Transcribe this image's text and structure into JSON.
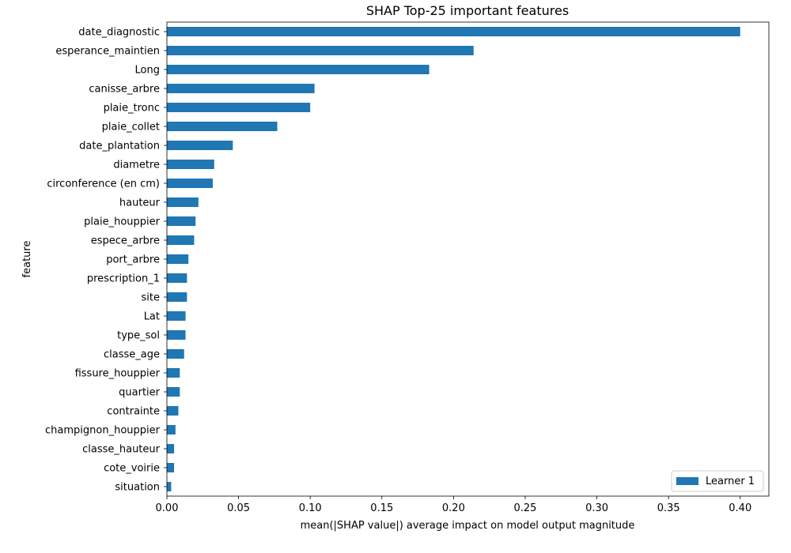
{
  "chart_data": {
    "type": "bar",
    "orientation": "horizontal",
    "title": "SHAP Top-25 important features",
    "xlabel": "mean(|SHAP value|) average impact on model output magnitude",
    "ylabel": "feature",
    "xlim": [
      0.0,
      0.42
    ],
    "xticks": [
      "0.00",
      "0.05",
      "0.10",
      "0.15",
      "0.20",
      "0.25",
      "0.30",
      "0.35",
      "0.40"
    ],
    "categories": [
      "date_diagnostic",
      "esperance_maintien",
      "Long",
      "canisse_arbre",
      "plaie_tronc",
      "plaie_collet",
      "date_plantation",
      "diametre",
      "circonference (en cm)",
      "hauteur",
      "plaie_houppier",
      "espece_arbre",
      "port_arbre",
      "prescription_1",
      "site",
      "Lat",
      "type_sol",
      "classe_age",
      "fissure_houppier",
      "quartier",
      "contrainte",
      "champignon_houppier",
      "classe_hauteur",
      "cote_voirie",
      "situation"
    ],
    "series": [
      {
        "name": "Learner 1",
        "color": "#1f77b4",
        "values": [
          0.4,
          0.214,
          0.183,
          0.103,
          0.1,
          0.077,
          0.046,
          0.033,
          0.032,
          0.022,
          0.02,
          0.019,
          0.015,
          0.014,
          0.014,
          0.013,
          0.013,
          0.012,
          0.009,
          0.009,
          0.008,
          0.006,
          0.005,
          0.005,
          0.003
        ]
      }
    ],
    "legend_position": "bottom-right",
    "grid": false
  }
}
